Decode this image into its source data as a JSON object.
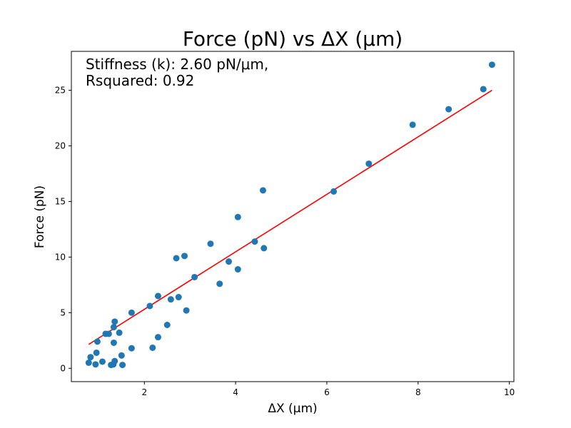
{
  "chart_data": {
    "type": "scatter",
    "title": "Force (pN) vs ΔX (μm)",
    "xlabel": "ΔX (μm)",
    "ylabel": "Force (pN)",
    "xlim": [
      0.4,
      10.1
    ],
    "ylim": [
      -1.2,
      28.5
    ],
    "xticks": [
      2,
      4,
      6,
      8,
      10
    ],
    "yticks": [
      0,
      5,
      10,
      15,
      20,
      25
    ],
    "grid": false,
    "annotation": [
      "Stiffness (k): 2.60 pN/μm,",
      "Rsquared: 0.92"
    ],
    "colors": {
      "points": "#1f77b4",
      "fit": "#ff0000"
    },
    "series": [
      {
        "kind": "scatter",
        "points": [
          [
            0.78,
            0.5
          ],
          [
            0.82,
            1.0
          ],
          [
            0.93,
            0.35
          ],
          [
            0.95,
            1.4
          ],
          [
            0.97,
            2.4
          ],
          [
            1.08,
            0.6
          ],
          [
            1.15,
            3.1
          ],
          [
            1.22,
            3.1
          ],
          [
            1.27,
            0.3
          ],
          [
            1.32,
            0.35
          ],
          [
            1.33,
            2.3
          ],
          [
            1.33,
            3.7
          ],
          [
            1.35,
            4.2
          ],
          [
            1.35,
            0.65
          ],
          [
            1.45,
            3.2
          ],
          [
            1.5,
            1.15
          ],
          [
            1.52,
            0.3
          ],
          [
            1.72,
            5.0
          ],
          [
            1.72,
            1.8
          ],
          [
            2.12,
            5.6
          ],
          [
            2.18,
            1.85
          ],
          [
            2.3,
            6.5
          ],
          [
            2.3,
            2.8
          ],
          [
            2.5,
            3.9
          ],
          [
            2.58,
            6.2
          ],
          [
            2.7,
            9.9
          ],
          [
            2.75,
            6.4
          ],
          [
            2.88,
            10.1
          ],
          [
            2.92,
            5.2
          ],
          [
            3.1,
            8.2
          ],
          [
            3.45,
            11.2
          ],
          [
            3.65,
            7.6
          ],
          [
            3.85,
            9.6
          ],
          [
            4.05,
            8.9
          ],
          [
            4.05,
            13.6
          ],
          [
            4.42,
            11.4
          ],
          [
            4.6,
            16.0
          ],
          [
            4.62,
            10.8
          ],
          [
            6.15,
            15.9
          ],
          [
            6.92,
            18.4
          ],
          [
            7.88,
            21.9
          ],
          [
            8.67,
            23.3
          ],
          [
            9.43,
            25.1
          ],
          [
            9.62,
            27.3
          ]
        ]
      },
      {
        "kind": "line",
        "points": [
          [
            0.78,
            2.15
          ],
          [
            9.62,
            25.0
          ]
        ]
      }
    ]
  }
}
